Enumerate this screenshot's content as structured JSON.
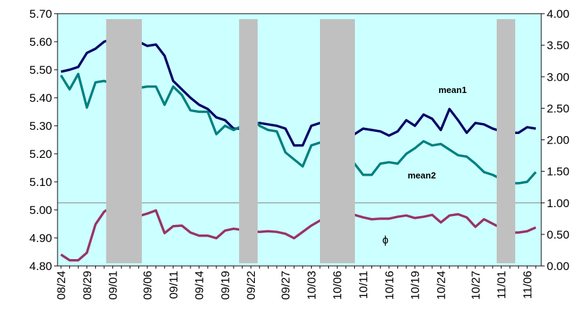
{
  "chart_data": {
    "type": "line",
    "categories": [
      "08/24",
      null,
      null,
      "08/29",
      null,
      null,
      "09/01",
      null,
      null,
      null,
      "09/06",
      null,
      null,
      "09/11",
      null,
      null,
      "09/14",
      null,
      null,
      "09/19",
      null,
      null,
      "09/22",
      null,
      null,
      null,
      "09/27",
      null,
      null,
      "10/03",
      null,
      null,
      "10/06",
      null,
      null,
      "10/11",
      null,
      null,
      "10/16",
      null,
      null,
      "10/19",
      null,
      null,
      "10/24",
      null,
      null,
      null,
      "10/27",
      null,
      null,
      "11/01",
      null,
      null,
      "11/06",
      null
    ],
    "series": [
      {
        "name": "mean1",
        "color": "#000066",
        "values": [
          5.493,
          5.5,
          5.51,
          5.56,
          5.575,
          5.6,
          5.61,
          5.61,
          5.61,
          5.6,
          5.585,
          5.59,
          5.55,
          5.46,
          5.43,
          5.4,
          5.375,
          5.36,
          5.33,
          5.32,
          5.29,
          5.29,
          5.3,
          5.31,
          5.305,
          5.3,
          5.29,
          5.23,
          5.23,
          5.3,
          5.31,
          5.3,
          5.29,
          5.28,
          5.27,
          5.29,
          5.285,
          5.28,
          5.265,
          5.28,
          5.32,
          5.3,
          5.34,
          5.325,
          5.285,
          5.36,
          5.32,
          5.275,
          5.31,
          5.305,
          5.29,
          5.28,
          5.275,
          5.275,
          5.295,
          5.29
        ]
      },
      {
        "name": "mean2",
        "color": "#008080",
        "values": [
          5.48,
          5.43,
          5.485,
          5.365,
          5.455,
          5.46,
          5.45,
          5.44,
          5.44,
          5.435,
          5.44,
          5.44,
          5.375,
          5.44,
          5.41,
          5.355,
          5.35,
          5.35,
          5.27,
          5.3,
          5.285,
          5.3,
          5.34,
          5.3,
          5.285,
          5.28,
          5.205,
          5.18,
          5.155,
          5.23,
          5.24,
          5.22,
          5.2,
          5.18,
          5.165,
          5.125,
          5.125,
          5.165,
          5.17,
          5.165,
          5.2,
          5.22,
          5.245,
          5.23,
          5.235,
          5.215,
          5.195,
          5.19,
          5.165,
          5.135,
          5.125,
          5.11,
          5.095,
          5.095,
          5.1,
          5.135
        ]
      },
      {
        "name": "ϕ",
        "color": "#993366",
        "axis": "y2",
        "values": [
          0.18,
          0.09,
          0.09,
          0.21,
          0.66,
          0.86,
          0.95,
          0.9,
          0.85,
          0.79,
          0.83,
          0.88,
          0.52,
          0.63,
          0.64,
          0.53,
          0.48,
          0.48,
          0.44,
          0.56,
          0.59,
          0.57,
          0.55,
          0.54,
          0.55,
          0.54,
          0.51,
          0.44,
          0.54,
          0.64,
          0.72,
          0.8,
          0.82,
          0.82,
          0.81,
          0.77,
          0.74,
          0.75,
          0.75,
          0.78,
          0.8,
          0.76,
          0.78,
          0.81,
          0.69,
          0.8,
          0.82,
          0.77,
          0.62,
          0.74,
          0.67,
          0.6,
          0.53,
          0.53,
          0.55,
          0.61
        ]
      }
    ],
    "ylim": [
      4.8,
      5.7
    ],
    "yticks": [
      {
        "value": 4.8,
        "label": "4.80"
      },
      {
        "value": 4.9,
        "label": "4.90"
      },
      {
        "value": 5.0,
        "label": "5.00"
      },
      {
        "value": 5.1,
        "label": "5.10"
      },
      {
        "value": 5.2,
        "label": "5.20"
      },
      {
        "value": 5.3,
        "label": "5.30"
      },
      {
        "value": 5.4,
        "label": "5.40"
      },
      {
        "value": 5.5,
        "label": "5.50"
      },
      {
        "value": 5.6,
        "label": "5.60"
      },
      {
        "value": 5.7,
        "label": "5.70"
      }
    ],
    "y2lim": [
      0,
      4
    ],
    "y2ticks": [
      {
        "value": 0,
        "label": "0.00"
      },
      {
        "value": 0.5,
        "label": "0.50"
      },
      {
        "value": 1,
        "label": "1.00"
      },
      {
        "value": 1.5,
        "label": "1.50"
      },
      {
        "value": 2,
        "label": "2.00"
      },
      {
        "value": 2.5,
        "label": "2.50"
      },
      {
        "value": 3,
        "label": "3.00"
      },
      {
        "value": 3.5,
        "label": "3.50"
      },
      {
        "value": 4,
        "label": "4.00"
      }
    ],
    "y2_reference_line": 1,
    "background": "#ccffff",
    "shade_color": "#c0c0c0"
  }
}
